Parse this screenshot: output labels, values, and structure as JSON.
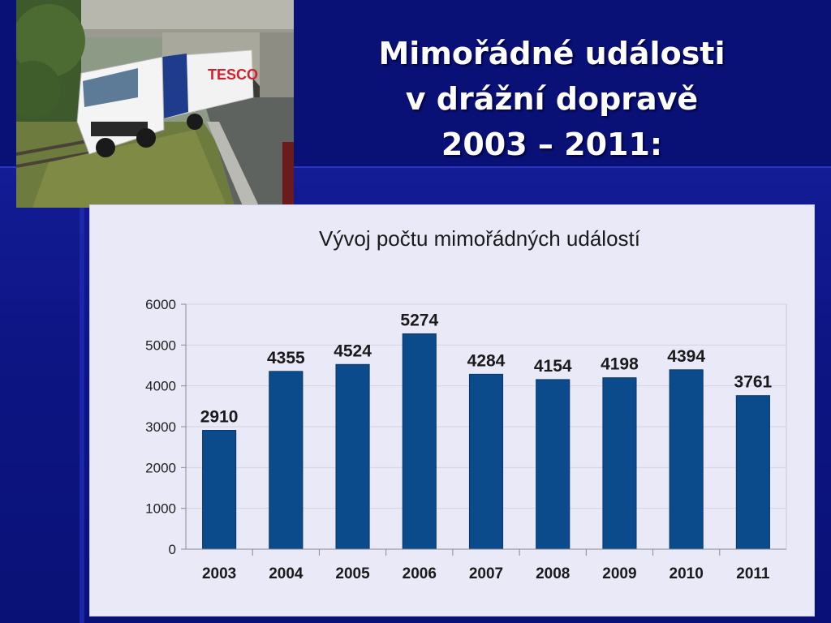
{
  "slide": {
    "title_lines": [
      "Mimořádné události",
      "v drážní dopravě",
      "2003 – 2011:"
    ]
  },
  "photo": {
    "description_icon": "truck-under-bridge-photo",
    "truck_text": "TESCO"
  },
  "colors": {
    "background": "#0a1176",
    "chart_panel": "#e9e9f8",
    "bar": "#0b4a8b",
    "title_text": "#ffffff"
  },
  "chart_data": {
    "type": "bar",
    "title": "Vývoj počtu mimořádných událostí",
    "categories": [
      "2003",
      "2004",
      "2005",
      "2006",
      "2007",
      "2008",
      "2009",
      "2010",
      "2011"
    ],
    "values": [
      2910,
      4355,
      4524,
      5274,
      4284,
      4154,
      4198,
      4394,
      3761
    ],
    "xlabel": "",
    "ylabel": "",
    "ylim": [
      0,
      6000
    ],
    "yticks": [
      0,
      1000,
      2000,
      3000,
      4000,
      5000,
      6000
    ],
    "grid": true,
    "legend": "none",
    "data_labels": true
  }
}
